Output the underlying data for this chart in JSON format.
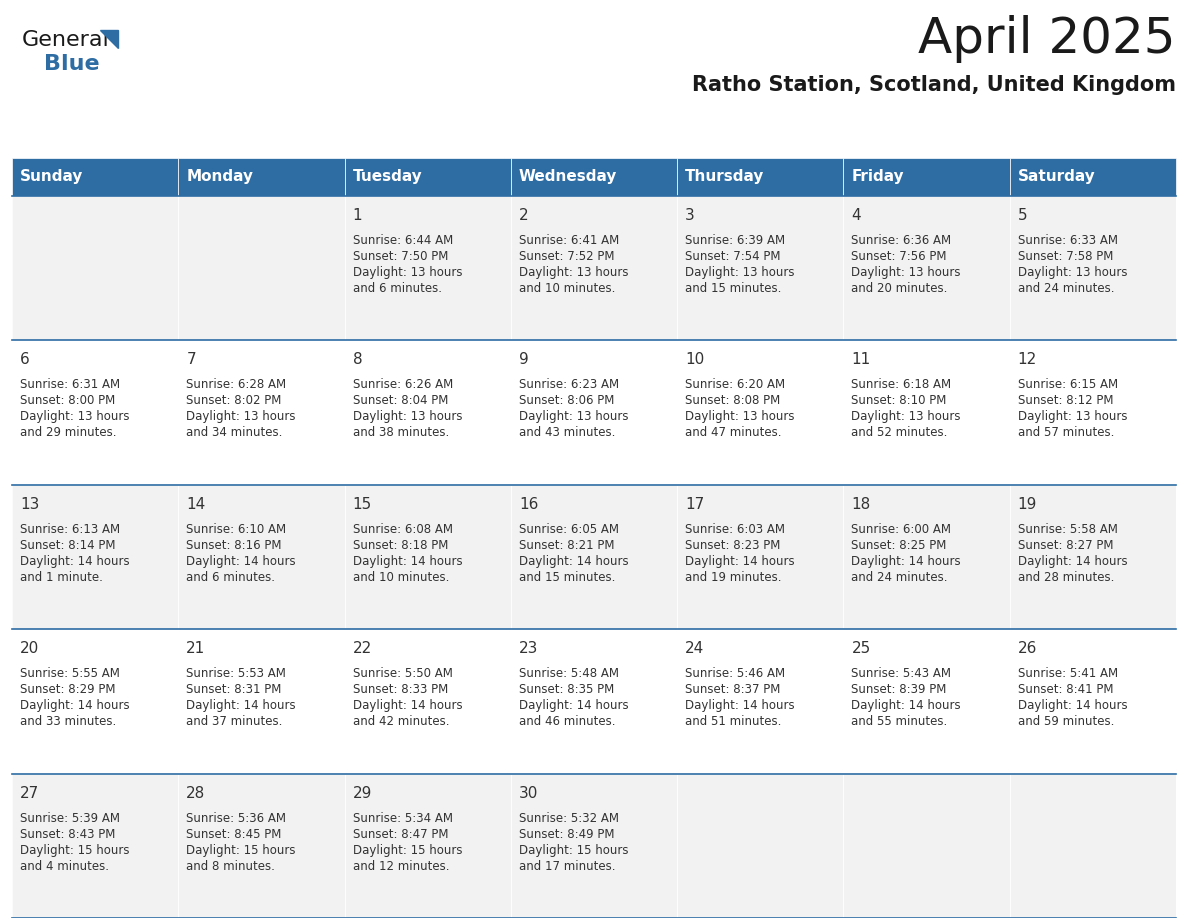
{
  "title": "April 2025",
  "subtitle": "Ratho Station, Scotland, United Kingdom",
  "header_bg_color": "#2E6DA4",
  "header_text_color": "#FFFFFF",
  "row_bg_even": "#F2F2F2",
  "row_bg_odd": "#FFFFFF",
  "day_headers": [
    "Sunday",
    "Monday",
    "Tuesday",
    "Wednesday",
    "Thursday",
    "Friday",
    "Saturday"
  ],
  "text_color": "#333333",
  "day_num_color": "#333333",
  "separator_color": "#2E6DA4",
  "logo_color": "#2E6DA4",
  "fig_width": 11.88,
  "fig_height": 9.18,
  "dpi": 100,
  "title_fontsize": 36,
  "subtitle_fontsize": 15,
  "header_fontsize": 11,
  "day_num_fontsize": 11,
  "cell_text_fontsize": 8.5,
  "calendar_data": [
    [
      {
        "day": "",
        "sunrise": "",
        "sunset": "",
        "daylight": ""
      },
      {
        "day": "",
        "sunrise": "",
        "sunset": "",
        "daylight": ""
      },
      {
        "day": "1",
        "sunrise": "6:44 AM",
        "sunset": "7:50 PM",
        "daylight": "13 hours and 6 minutes."
      },
      {
        "day": "2",
        "sunrise": "6:41 AM",
        "sunset": "7:52 PM",
        "daylight": "13 hours and 10 minutes."
      },
      {
        "day": "3",
        "sunrise": "6:39 AM",
        "sunset": "7:54 PM",
        "daylight": "13 hours and 15 minutes."
      },
      {
        "day": "4",
        "sunrise": "6:36 AM",
        "sunset": "7:56 PM",
        "daylight": "13 hours and 20 minutes."
      },
      {
        "day": "5",
        "sunrise": "6:33 AM",
        "sunset": "7:58 PM",
        "daylight": "13 hours and 24 minutes."
      }
    ],
    [
      {
        "day": "6",
        "sunrise": "6:31 AM",
        "sunset": "8:00 PM",
        "daylight": "13 hours and 29 minutes."
      },
      {
        "day": "7",
        "sunrise": "6:28 AM",
        "sunset": "8:02 PM",
        "daylight": "13 hours and 34 minutes."
      },
      {
        "day": "8",
        "sunrise": "6:26 AM",
        "sunset": "8:04 PM",
        "daylight": "13 hours and 38 minutes."
      },
      {
        "day": "9",
        "sunrise": "6:23 AM",
        "sunset": "8:06 PM",
        "daylight": "13 hours and 43 minutes."
      },
      {
        "day": "10",
        "sunrise": "6:20 AM",
        "sunset": "8:08 PM",
        "daylight": "13 hours and 47 minutes."
      },
      {
        "day": "11",
        "sunrise": "6:18 AM",
        "sunset": "8:10 PM",
        "daylight": "13 hours and 52 minutes."
      },
      {
        "day": "12",
        "sunrise": "6:15 AM",
        "sunset": "8:12 PM",
        "daylight": "13 hours and 57 minutes."
      }
    ],
    [
      {
        "day": "13",
        "sunrise": "6:13 AM",
        "sunset": "8:14 PM",
        "daylight": "14 hours and 1 minute."
      },
      {
        "day": "14",
        "sunrise": "6:10 AM",
        "sunset": "8:16 PM",
        "daylight": "14 hours and 6 minutes."
      },
      {
        "day": "15",
        "sunrise": "6:08 AM",
        "sunset": "8:18 PM",
        "daylight": "14 hours and 10 minutes."
      },
      {
        "day": "16",
        "sunrise": "6:05 AM",
        "sunset": "8:21 PM",
        "daylight": "14 hours and 15 minutes."
      },
      {
        "day": "17",
        "sunrise": "6:03 AM",
        "sunset": "8:23 PM",
        "daylight": "14 hours and 19 minutes."
      },
      {
        "day": "18",
        "sunrise": "6:00 AM",
        "sunset": "8:25 PM",
        "daylight": "14 hours and 24 minutes."
      },
      {
        "day": "19",
        "sunrise": "5:58 AM",
        "sunset": "8:27 PM",
        "daylight": "14 hours and 28 minutes."
      }
    ],
    [
      {
        "day": "20",
        "sunrise": "5:55 AM",
        "sunset": "8:29 PM",
        "daylight": "14 hours and 33 minutes."
      },
      {
        "day": "21",
        "sunrise": "5:53 AM",
        "sunset": "8:31 PM",
        "daylight": "14 hours and 37 minutes."
      },
      {
        "day": "22",
        "sunrise": "5:50 AM",
        "sunset": "8:33 PM",
        "daylight": "14 hours and 42 minutes."
      },
      {
        "day": "23",
        "sunrise": "5:48 AM",
        "sunset": "8:35 PM",
        "daylight": "14 hours and 46 minutes."
      },
      {
        "day": "24",
        "sunrise": "5:46 AM",
        "sunset": "8:37 PM",
        "daylight": "14 hours and 51 minutes."
      },
      {
        "day": "25",
        "sunrise": "5:43 AM",
        "sunset": "8:39 PM",
        "daylight": "14 hours and 55 minutes."
      },
      {
        "day": "26",
        "sunrise": "5:41 AM",
        "sunset": "8:41 PM",
        "daylight": "14 hours and 59 minutes."
      }
    ],
    [
      {
        "day": "27",
        "sunrise": "5:39 AM",
        "sunset": "8:43 PM",
        "daylight": "15 hours and 4 minutes."
      },
      {
        "day": "28",
        "sunrise": "5:36 AM",
        "sunset": "8:45 PM",
        "daylight": "15 hours and 8 minutes."
      },
      {
        "day": "29",
        "sunrise": "5:34 AM",
        "sunset": "8:47 PM",
        "daylight": "15 hours and 12 minutes."
      },
      {
        "day": "30",
        "sunrise": "5:32 AM",
        "sunset": "8:49 PM",
        "daylight": "15 hours and 17 minutes."
      },
      {
        "day": "",
        "sunrise": "",
        "sunset": "",
        "daylight": ""
      },
      {
        "day": "",
        "sunrise": "",
        "sunset": "",
        "daylight": ""
      },
      {
        "day": "",
        "sunrise": "",
        "sunset": "",
        "daylight": ""
      }
    ]
  ]
}
